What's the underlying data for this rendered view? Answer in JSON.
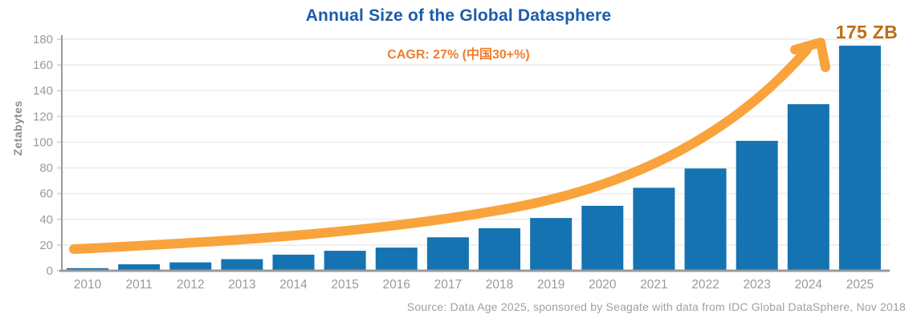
{
  "header": {
    "title": "Annual Size of the Global Datasphere",
    "subtitle": "CAGR: 27% (中国30+%)",
    "annotation": "175 ZB"
  },
  "source": "Source: Data Age 2025, sponsored by Seagate with data from IDC Global DataSphere, Nov 2018",
  "chart_data": {
    "type": "bar",
    "categories": [
      "2010",
      "2011",
      "2012",
      "2013",
      "2014",
      "2015",
      "2016",
      "2017",
      "2018",
      "2019",
      "2020",
      "2021",
      "2022",
      "2023",
      "2024",
      "2025"
    ],
    "values": [
      2,
      5,
      6.5,
      9,
      12.5,
      15.5,
      18,
      26,
      33,
      41,
      50.5,
      64.5,
      79.5,
      101,
      129.5,
      175
    ],
    "title": "Annual Size of the Global Datasphere",
    "xlabel": "",
    "ylabel": "Zetabytes",
    "ylim": [
      0,
      180
    ],
    "yticks": [
      0,
      20,
      40,
      60,
      80,
      100,
      120,
      140,
      160,
      180
    ],
    "grid": true,
    "legend": false,
    "annotations": [
      {
        "text": "CAGR: 27% (中国30+%)",
        "position": "top-center"
      },
      {
        "text": "175 ZB",
        "position": "top-right",
        "points_to": "2025 bar"
      }
    ]
  },
  "colors": {
    "background": "#ffffff",
    "bar": "#1573b2",
    "title": "#1b5ca9",
    "subtitle": "#ef7d2c",
    "annotation": "#c06d15",
    "arrow": "#f9a33c",
    "axis": "#999999",
    "tick": "#d9d9d9",
    "tick_label": "#9a9a9a",
    "grid": "#f0f0f0",
    "axis_title": "#8d8d8d",
    "source": "#9f9f9f"
  }
}
